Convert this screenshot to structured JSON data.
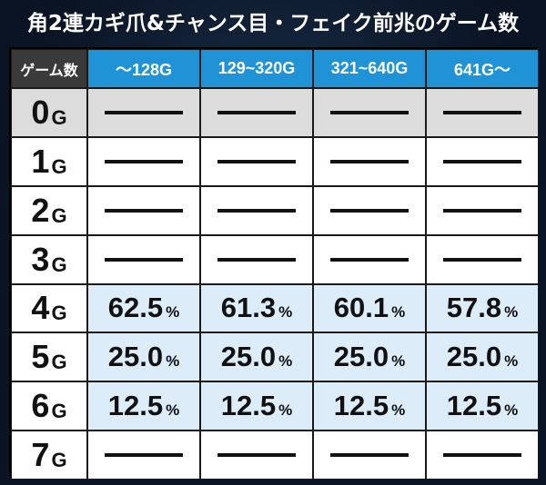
{
  "title": "角2連カギ爪&チャンス目・フェイク前兆のゲーム数",
  "table": {
    "corner_label": "ゲーム数",
    "columns": [
      "～128G",
      "129~320G",
      "321~640G",
      "641G～"
    ],
    "unit": "G",
    "percent_symbol": "%",
    "rows": [
      {
        "label": "0",
        "values": [
          "—",
          "—",
          "—",
          "—"
        ]
      },
      {
        "label": "1",
        "values": [
          "—",
          "—",
          "—",
          "—"
        ]
      },
      {
        "label": "2",
        "values": [
          "—",
          "—",
          "—",
          "—"
        ]
      },
      {
        "label": "3",
        "values": [
          "—",
          "—",
          "—",
          "—"
        ]
      },
      {
        "label": "4",
        "values": [
          "62.5",
          "61.3",
          "60.1",
          "57.8"
        ]
      },
      {
        "label": "5",
        "values": [
          "25.0",
          "25.0",
          "25.0",
          "25.0"
        ]
      },
      {
        "label": "6",
        "values": [
          "12.5",
          "12.5",
          "12.5",
          "12.5"
        ]
      },
      {
        "label": "7",
        "values": [
          "—",
          "—",
          "—",
          "—"
        ]
      }
    ]
  },
  "colors": {
    "header_blue": "#1f93d6",
    "highlight_row": "#dcecf9",
    "gray_row": "#dcdcdc",
    "corner_bg": "#3a3a3a"
  }
}
